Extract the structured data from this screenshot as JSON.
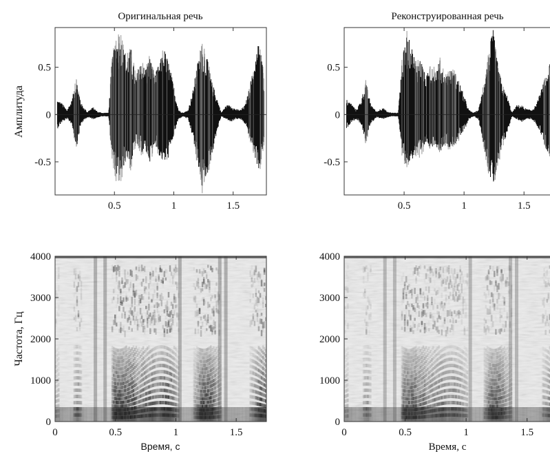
{
  "chart_data": [
    {
      "type": "line",
      "title": "Оригинальная речь",
      "xlabel": "",
      "ylabel": "Амплитуда",
      "xlim": [
        0,
        1.78
      ],
      "ylim": [
        -0.85,
        0.92
      ],
      "xticks": [
        0.5,
        1,
        1.5
      ],
      "xtick_labels": [
        "0.5",
        "1",
        "1.5"
      ],
      "yticks": [
        0.5,
        0,
        -0.5
      ],
      "ytick_labels": [
        "0.5",
        "0",
        "-0.5"
      ],
      "series": [
        {
          "color": "#111111",
          "envelope": {
            "t": [
              0.02,
              0.06,
              0.1,
              0.14,
              0.18,
              0.22,
              0.27,
              0.32,
              0.36,
              0.4,
              0.45,
              0.48,
              0.52,
              0.56,
              0.6,
              0.64,
              0.68,
              0.72,
              0.76,
              0.8,
              0.84,
              0.88,
              0.92,
              0.96,
              1.0,
              1.04,
              1.08,
              1.12,
              1.16,
              1.2,
              1.24,
              1.28,
              1.32,
              1.36,
              1.4,
              1.44,
              1.48,
              1.52,
              1.56,
              1.6,
              1.64,
              1.68,
              1.72,
              1.76
            ],
            "pos": [
              0.16,
              0.12,
              0.05,
              0.15,
              0.38,
              0.12,
              0.03,
              0.08,
              0.03,
              0.02,
              0.02,
              0.6,
              0.82,
              0.8,
              0.6,
              0.7,
              0.4,
              0.55,
              0.5,
              0.62,
              0.42,
              0.55,
              0.7,
              0.55,
              0.3,
              0.05,
              0.02,
              0.05,
              0.25,
              0.55,
              0.75,
              0.6,
              0.35,
              0.2,
              0.02,
              0.1,
              0.1,
              0.06,
              0.05,
              0.1,
              0.3,
              0.55,
              0.82,
              0.4
            ],
            "neg": [
              0.15,
              0.08,
              0.05,
              0.1,
              0.35,
              0.1,
              0.03,
              0.05,
              0.03,
              0.02,
              0.02,
              0.45,
              0.68,
              0.65,
              0.45,
              0.55,
              0.3,
              0.4,
              0.4,
              0.5,
              0.3,
              0.45,
              0.52,
              0.45,
              0.22,
              0.05,
              0.02,
              0.05,
              0.25,
              0.5,
              0.78,
              0.65,
              0.45,
              0.2,
              0.02,
              0.05,
              0.08,
              0.05,
              0.05,
              0.1,
              0.25,
              0.45,
              0.6,
              0.3
            ]
          }
        }
      ]
    },
    {
      "type": "line",
      "title": "Реконструированная речь",
      "xlabel": "",
      "ylabel": "",
      "xlim": [
        0,
        1.78
      ],
      "ylim": [
        -0.85,
        0.92
      ],
      "xticks": [
        0.5,
        1,
        1.5
      ],
      "xtick_labels": [
        "0.5",
        "1",
        "1.5"
      ],
      "yticks": [
        0.5,
        0,
        -0.5
      ],
      "ytick_labels": [
        "0.5",
        "0",
        "-0.5"
      ],
      "series": [
        {
          "color": "#111111",
          "envelope": {
            "t": [
              0.02,
              0.06,
              0.1,
              0.14,
              0.18,
              0.22,
              0.27,
              0.32,
              0.36,
              0.4,
              0.45,
              0.48,
              0.52,
              0.56,
              0.6,
              0.64,
              0.68,
              0.72,
              0.76,
              0.8,
              0.84,
              0.88,
              0.92,
              0.96,
              1.0,
              1.04,
              1.08,
              1.12,
              1.16,
              1.2,
              1.24,
              1.28,
              1.32,
              1.36,
              1.4,
              1.44,
              1.48,
              1.52,
              1.56,
              1.6,
              1.64,
              1.68,
              1.72,
              1.76
            ],
            "pos": [
              0.16,
              0.12,
              0.05,
              0.15,
              0.35,
              0.12,
              0.03,
              0.08,
              0.03,
              0.02,
              0.02,
              0.55,
              0.85,
              0.75,
              0.55,
              0.6,
              0.4,
              0.5,
              0.48,
              0.58,
              0.4,
              0.48,
              0.45,
              0.35,
              0.2,
              0.05,
              0.02,
              0.05,
              0.3,
              0.6,
              0.92,
              0.55,
              0.3,
              0.2,
              0.02,
              0.1,
              0.1,
              0.06,
              0.05,
              0.1,
              0.25,
              0.4,
              0.55,
              0.3
            ],
            "neg": [
              0.15,
              0.08,
              0.05,
              0.1,
              0.3,
              0.1,
              0.03,
              0.05,
              0.03,
              0.02,
              0.02,
              0.4,
              0.55,
              0.5,
              0.4,
              0.45,
              0.3,
              0.35,
              0.32,
              0.4,
              0.3,
              0.35,
              0.32,
              0.25,
              0.18,
              0.05,
              0.02,
              0.05,
              0.3,
              0.55,
              0.8,
              0.55,
              0.35,
              0.2,
              0.02,
              0.05,
              0.08,
              0.05,
              0.05,
              0.1,
              0.2,
              0.35,
              0.45,
              0.25
            ]
          }
        }
      ]
    },
    {
      "type": "heatmap",
      "title": "",
      "xlabel": "Время, с",
      "ylabel": "Частота, Гц",
      "xlim": [
        0,
        1.75
      ],
      "ylim": [
        0,
        4000
      ],
      "xticks": [
        0,
        0.5,
        1,
        1.5
      ],
      "xtick_labels": [
        "0",
        "0.5",
        "1",
        "1.5"
      ],
      "yticks": [
        0,
        1000,
        2000,
        3000,
        4000
      ],
      "ytick_labels": [
        "0",
        "1000",
        "2000",
        "3000",
        "4000"
      ],
      "colormap": [
        "#f2f2f2",
        "#1a1a1a"
      ]
    },
    {
      "type": "heatmap",
      "title": "",
      "xlabel": "Время, с",
      "ylabel": "",
      "xlim": [
        0,
        1.75
      ],
      "ylim": [
        0,
        4000
      ],
      "xticks": [
        0,
        0.5,
        1,
        1.5
      ],
      "xtick_labels": [
        "0",
        "0.5",
        "1",
        "1.5"
      ],
      "yticks": [
        0,
        1000,
        2000,
        3000,
        4000
      ],
      "ytick_labels": [
        "0",
        "1000",
        "2000",
        "3000",
        "4000"
      ],
      "colormap": [
        "#f2f2f2",
        "#1a1a1a"
      ]
    }
  ]
}
